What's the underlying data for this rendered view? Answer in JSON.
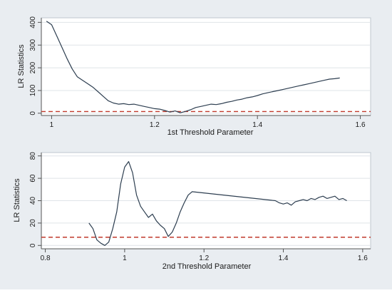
{
  "chart_data": [
    {
      "type": "line",
      "xlabel": "1st Threshold Parameter",
      "ylabel": "LR Statistics",
      "xlim": [
        0.98,
        1.62
      ],
      "ylim": [
        -10,
        420
      ],
      "xticks": [
        1,
        1.2,
        1.4,
        1.6
      ],
      "xtick_labels": [
        "1",
        "1.2",
        "1.4",
        "1.6"
      ],
      "yticks": [
        0,
        100,
        200,
        300,
        400
      ],
      "ytick_labels": [
        "0",
        "100",
        "200",
        "300",
        "400"
      ],
      "grid": "horizontal",
      "legend": "none",
      "line_color": "#2d3e50",
      "ref_line_color": "#c0392b",
      "critical_value": 7.35,
      "series": [
        {
          "x": [
            0.99,
            1.0,
            1.01,
            1.02,
            1.03,
            1.04,
            1.05,
            1.06,
            1.07,
            1.08,
            1.09,
            1.1,
            1.11,
            1.12,
            1.13,
            1.14,
            1.15,
            1.16,
            1.17,
            1.18,
            1.19,
            1.2,
            1.21,
            1.22,
            1.23,
            1.24,
            1.25,
            1.26,
            1.27,
            1.28,
            1.29,
            1.3,
            1.31,
            1.32,
            1.33,
            1.34,
            1.35,
            1.36,
            1.37,
            1.38,
            1.39,
            1.4,
            1.41,
            1.42,
            1.43,
            1.44,
            1.45,
            1.46,
            1.47,
            1.48,
            1.49,
            1.5,
            1.51,
            1.52,
            1.53,
            1.54,
            1.55,
            1.56
          ],
          "y": [
            405,
            390,
            340,
            290,
            240,
            195,
            160,
            145,
            130,
            115,
            95,
            75,
            55,
            45,
            40,
            42,
            38,
            40,
            35,
            30,
            25,
            20,
            18,
            12,
            5,
            10,
            2,
            8,
            15,
            25,
            30,
            35,
            40,
            38,
            42,
            48,
            52,
            58,
            62,
            68,
            72,
            78,
            85,
            90,
            95,
            100,
            105,
            110,
            115,
            120,
            125,
            130,
            135,
            140,
            145,
            150,
            152,
            155
          ]
        }
      ]
    },
    {
      "type": "line",
      "xlabel": "2nd Threshold Parameter",
      "ylabel": "LR Statistics",
      "xlim": [
        0.79,
        1.62
      ],
      "ylim": [
        -3,
        83
      ],
      "xticks": [
        0.8,
        1,
        1.2,
        1.4,
        1.6
      ],
      "xtick_labels": [
        "0.8",
        "1",
        "1.2",
        "1.4",
        "1.6"
      ],
      "yticks": [
        0,
        20,
        40,
        60,
        80
      ],
      "ytick_labels": [
        "0",
        "20",
        "40",
        "60",
        "80"
      ],
      "grid": "horizontal",
      "legend": "none",
      "line_color": "#2d3e50",
      "ref_line_color": "#c0392b",
      "critical_value": 7.35,
      "series": [
        {
          "x": [
            0.91,
            0.92,
            0.93,
            0.94,
            0.95,
            0.96,
            0.97,
            0.98,
            0.99,
            1.0,
            1.01,
            1.02,
            1.03,
            1.04,
            1.05,
            1.06,
            1.07,
            1.08,
            1.09,
            1.1,
            1.11,
            1.12,
            1.13,
            1.14,
            1.15,
            1.16,
            1.17,
            1.38,
            1.39,
            1.4,
            1.41,
            1.42,
            1.43,
            1.44,
            1.45,
            1.46,
            1.47,
            1.48,
            1.49,
            1.5,
            1.51,
            1.52,
            1.53,
            1.54,
            1.55,
            1.56
          ],
          "y": [
            20,
            15,
            5,
            2,
            0,
            3,
            15,
            30,
            55,
            70,
            75,
            65,
            45,
            35,
            30,
            25,
            28,
            22,
            18,
            15,
            8,
            12,
            20,
            30,
            38,
            45,
            48,
            40,
            38,
            37,
            38,
            36,
            39,
            40,
            41,
            40,
            42,
            41,
            43,
            44,
            42,
            43,
            44,
            41,
            42,
            40
          ]
        }
      ]
    }
  ]
}
